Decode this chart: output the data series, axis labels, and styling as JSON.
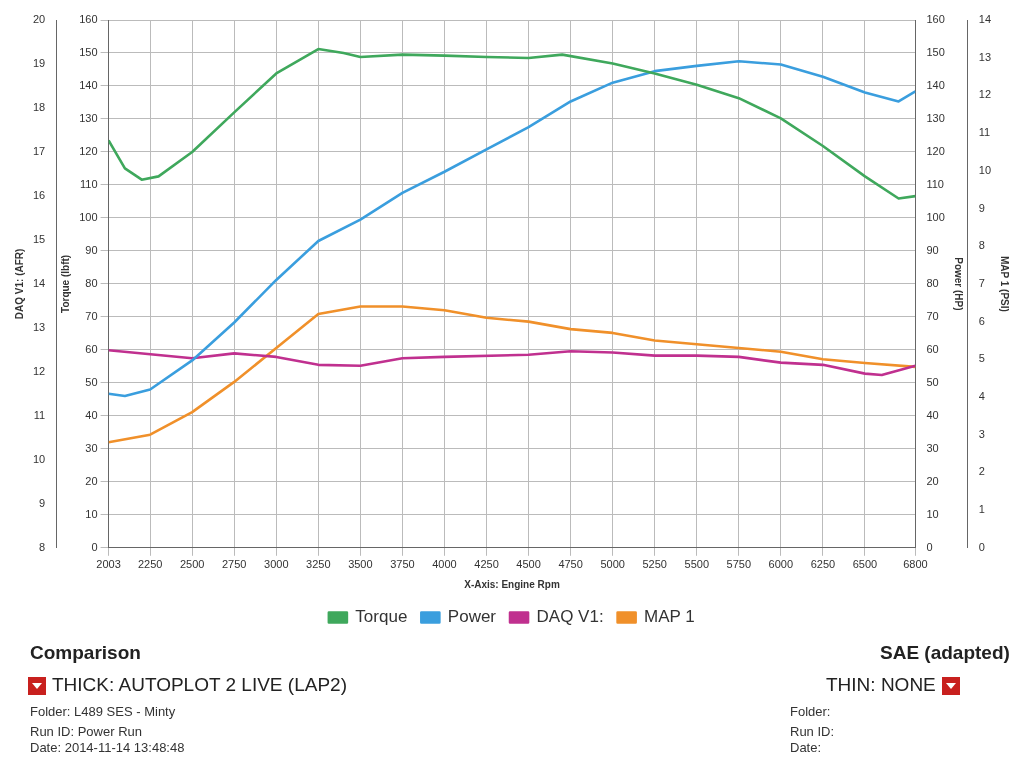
{
  "chart_data": {
    "type": "line",
    "xlabel": "X-Axis: Engine Rpm",
    "ylabel": "Torque (lbft)",
    "y2label": "MAP 1 (PSI)",
    "y3label": "DAQ V1: (AFR)",
    "xlim": [
      2003,
      6800
    ],
    "xticks": [
      2003,
      2250,
      2500,
      2750,
      3000,
      3250,
      3500,
      3750,
      4000,
      4250,
      4500,
      4750,
      5000,
      5250,
      5500,
      5750,
      6000,
      6250,
      6500,
      6800
    ],
    "ylim": [
      0,
      160
    ],
    "yticks": [
      0,
      10,
      20,
      30,
      40,
      50,
      60,
      70,
      80,
      90,
      100,
      110,
      120,
      130,
      140,
      150,
      160
    ],
    "y2lim": [
      0,
      14
    ],
    "y2ticks": [
      0,
      1,
      2,
      3,
      4,
      5,
      6,
      7,
      8,
      9,
      10,
      11,
      12,
      13,
      14
    ],
    "y3lim": [
      8,
      20
    ],
    "y3ticks": [
      8,
      9,
      10,
      11,
      12,
      13,
      14,
      15,
      16,
      17,
      18,
      19,
      20
    ],
    "grid": true,
    "legend": "bottom",
    "marker": "none",
    "line_style": "solid",
    "series": [
      {
        "name": "Torque",
        "color": "#3fa85c",
        "axis": "y",
        "x": [
          2003,
          2100,
          2200,
          2300,
          2500,
          2750,
          3000,
          3250,
          3400,
          3500,
          3750,
          4000,
          4250,
          4500,
          4700,
          5000,
          5250,
          5500,
          5750,
          6000,
          6250,
          6500,
          6700,
          6800
        ],
        "values": [
          123.5,
          115,
          111.6,
          112.6,
          120,
          132,
          143.8,
          151.2,
          150,
          148.8,
          149.5,
          149.2,
          148.8,
          148.5,
          149.5,
          146.8,
          143.8,
          140.4,
          136.3,
          130.2,
          121.8,
          112.6,
          105.9,
          106.6
        ]
      },
      {
        "name": "Power",
        "color": "#3a9ede",
        "axis": "y",
        "x": [
          2003,
          2100,
          2250,
          2500,
          2750,
          3000,
          3250,
          3500,
          3750,
          4000,
          4250,
          4500,
          4750,
          5000,
          5250,
          5500,
          5750,
          6000,
          6250,
          6500,
          6700,
          6800
        ],
        "values": [
          46.7,
          46,
          48,
          56.8,
          68.3,
          81.2,
          93,
          99.5,
          107.6,
          114,
          120.8,
          127.5,
          135.3,
          141,
          144.5,
          146.1,
          147.5,
          146.5,
          142.8,
          138,
          135.3,
          138.4
        ]
      },
      {
        "name": "DAQ V1:",
        "color": "#c0308f",
        "axis": "y3",
        "x": [
          2003,
          2500,
          2750,
          3000,
          3250,
          3500,
          3750,
          4000,
          4500,
          4750,
          5000,
          5250,
          5500,
          5750,
          6000,
          6250,
          6500,
          6600,
          6800
        ],
        "values": [
          12.49,
          12.31,
          12.42,
          12.34,
          12.16,
          12.14,
          12.31,
          12.34,
          12.39,
          12.47,
          12.44,
          12.37,
          12.37,
          12.34,
          12.21,
          12.16,
          11.96,
          11.93,
          12.14
        ]
      },
      {
        "name": "MAP 1",
        "color": "#f0902a",
        "axis": "y2",
        "x": [
          2003,
          2250,
          2500,
          2750,
          3000,
          3250,
          3500,
          3750,
          4000,
          4250,
          4500,
          4750,
          5000,
          5250,
          5500,
          5750,
          6000,
          6250,
          6500,
          6800
        ],
        "values": [
          2.8,
          3.0,
          3.6,
          4.4,
          5.3,
          6.2,
          6.4,
          6.4,
          6.3,
          6.1,
          6.0,
          5.8,
          5.7,
          5.5,
          5.4,
          5.3,
          5.2,
          5.0,
          4.9,
          4.8
        ]
      }
    ],
    "annotations": [
      "Comparison",
      "SAE (adapted)",
      "THICK: AUTOPLOT 2 LIVE (LAP2)",
      "THIN: NONE",
      "Folder: L489 SES - Minty",
      "Run ID: Power Run",
      "Date: 2014-11-14 13:48:48",
      "Folder:",
      "Run ID:",
      "Date:",
      "Power (HP)",
      "0",
      "10",
      "20",
      "30",
      "40",
      "50",
      "60",
      "70",
      "80",
      "90",
      "100",
      "110",
      "120",
      "130",
      "140",
      "150",
      "160"
    ]
  }
}
